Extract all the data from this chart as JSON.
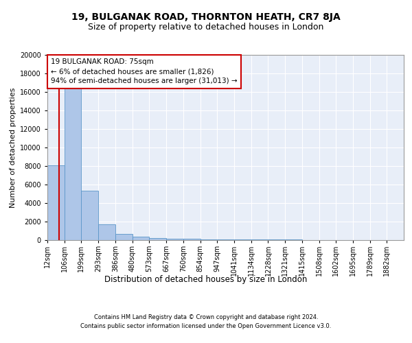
{
  "title1": "19, BULGANAK ROAD, THORNTON HEATH, CR7 8JA",
  "title2": "Size of property relative to detached houses in London",
  "xlabel": "Distribution of detached houses by size in London",
  "ylabel": "Number of detached properties",
  "footer1": "Contains HM Land Registry data © Crown copyright and database right 2024.",
  "footer2": "Contains public sector information licensed under the Open Government Licence v3.0.",
  "annotation_line1": "19 BULGANAK ROAD: 75sqm",
  "annotation_line2": "← 6% of detached houses are smaller (1,826)",
  "annotation_line3": "94% of semi-detached houses are larger (31,013) →",
  "property_size": 75,
  "bar_labels": [
    "12sqm",
    "106sqm",
    "199sqm",
    "293sqm",
    "386sqm",
    "480sqm",
    "573sqm",
    "667sqm",
    "760sqm",
    "854sqm",
    "947sqm",
    "1041sqm",
    "1134sqm",
    "1228sqm",
    "1321sqm",
    "1415sqm",
    "1508sqm",
    "1602sqm",
    "1695sqm",
    "1789sqm",
    "1882sqm"
  ],
  "bar_edges": [
    12,
    106,
    199,
    293,
    386,
    480,
    573,
    667,
    760,
    854,
    947,
    1041,
    1134,
    1228,
    1321,
    1415,
    1508,
    1602,
    1695,
    1789,
    1882
  ],
  "bar_heights": [
    8100,
    17000,
    5300,
    1700,
    700,
    350,
    220,
    160,
    130,
    110,
    90,
    75,
    60,
    50,
    40,
    30,
    25,
    20,
    15,
    12,
    10
  ],
  "bar_color": "#aec6e8",
  "bar_edge_color": "#5a96c8",
  "red_line_color": "#cc0000",
  "annotation_box_color": "#cc0000",
  "background_color": "#e8eef8",
  "ylim": [
    0,
    20000
  ],
  "title1_fontsize": 10,
  "title2_fontsize": 9,
  "xlabel_fontsize": 8.5,
  "ylabel_fontsize": 8,
  "tick_fontsize": 7,
  "footer_fontsize": 6,
  "annotation_fontsize": 7.5
}
